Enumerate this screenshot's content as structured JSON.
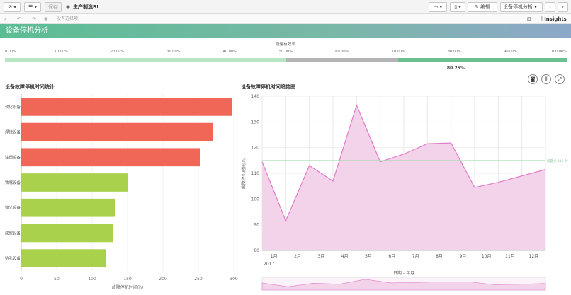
{
  "toolbar": {
    "save_label": "保存",
    "app_title": "生产制造BI",
    "edit_label": "编辑",
    "sheet_selector": "设备停机分析"
  },
  "toolbar2": {
    "selection_hint": "没有选择项",
    "insights_label": "Insights"
  },
  "banner": {
    "title": "设备停机分析"
  },
  "kpi": {
    "title": "设备有效率",
    "ticks": [
      "0.00%",
      "10.00%",
      "20.00%",
      "30.00%",
      "40.00%",
      "50.00%",
      "60.00%",
      "70.00%",
      "80.00%",
      "90.00%",
      "100.00%"
    ],
    "value": 80.25,
    "value_label": "80.25%",
    "segments": [
      {
        "from": 0,
        "to": 50,
        "color": "#b8e6c4"
      },
      {
        "from": 50,
        "to": 70,
        "color": "#b4b4b4"
      },
      {
        "from": 70,
        "to": 100,
        "color": "#6cc08e"
      }
    ]
  },
  "chart_data": [
    {
      "type": "bar",
      "orientation": "horizontal",
      "title": "设备故障停机时间统计",
      "xlabel": "故障停机时间(h)",
      "ylabel": "",
      "xlim": [
        0,
        300
      ],
      "xticks": [
        0,
        50,
        100,
        150,
        200,
        250,
        300
      ],
      "categories": [
        "软化设备",
        "焊接设备",
        "注塑设备",
        "铁嘴设备",
        "铆光设备",
        "成型设备",
        "钻孔设备"
      ],
      "values": [
        298,
        270,
        252,
        150,
        133,
        130,
        120
      ],
      "colors": [
        "#f06758",
        "#f06758",
        "#f06758",
        "#a9d14b",
        "#a9d14b",
        "#a9d14b",
        "#a9d14b"
      ]
    },
    {
      "type": "area",
      "title": "设备故障停机时间趋势图",
      "xlabel": "日期 - 年月",
      "ylabel": "故障停机时间(h)",
      "x_categories": [
        "1月",
        "2月",
        "3月",
        "4月",
        "5月",
        "6月",
        "7月",
        "8月",
        "9月",
        "10月",
        "11月",
        "12月"
      ],
      "x_group_label": "2017",
      "ylim": [
        80,
        140
      ],
      "yticks": [
        80,
        90,
        100,
        110,
        120,
        130,
        140
      ],
      "values": [
        114.5,
        91.5,
        113,
        107,
        136.5,
        114.5,
        117.5,
        121.5,
        121.8,
        104.5,
        106.5,
        111.5
      ],
      "reference_line": {
        "value": 115,
        "label": "问题点 115 时"
      },
      "color": "#e07bc8",
      "fill": "#f3d3ea"
    }
  ]
}
